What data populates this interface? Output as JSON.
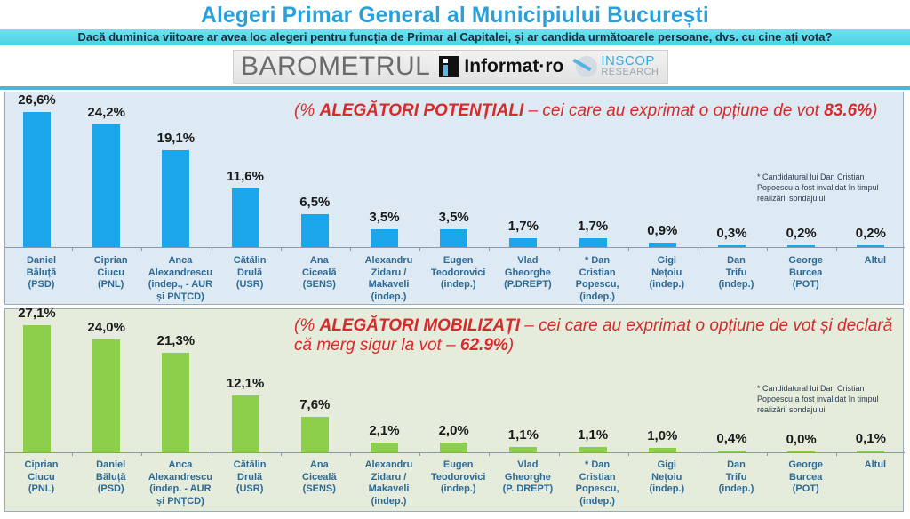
{
  "header": {
    "title": "Alegeri Primar General al Municipiului București",
    "question": "Dacă duminica viitoare ar avea loc alegeri pentru funcția de Primar al Capitalei, și ar candida următoarele persoane, dvs. cu cine ați vota?",
    "logos": {
      "barometrul": "BAROMETRUL",
      "informat": "Informat",
      "informat_suffix": "·ro",
      "inscop_1": "INSCOP",
      "inscop_2": "RESEARCH"
    }
  },
  "colors": {
    "title": "#2a9fd8",
    "potential_bar": "#1aa6e8",
    "mobilized_bar": "#8ccf4b",
    "heading_red": "#d62b2b",
    "label_blue": "#2e6a96"
  },
  "panels": {
    "potential": {
      "heading_open": "(% ",
      "heading_bold": "ALEGĂTORI POTENȚIALI",
      "heading_rest": " – cei care au exprimat o opțiune de vot ",
      "heading_value": "83.6%",
      "heading_close": ")",
      "footnote": "* Candidatural lui Dan Cristian Popoescu a fost invalidat în timpul realizării sondajului"
    },
    "mobilized": {
      "heading_open": "(% ",
      "heading_bold": "ALEGĂTORI MOBILIZAȚI",
      "heading_rest": " – cei care au exprimat o opțiune de vot și declară că merg sigur la vot – ",
      "heading_value": "62.9%",
      "heading_close": ")",
      "footnote": "* Candidatural lui Dan Cristian Popoescu a fost invalidat în timpul realizării sondajului"
    }
  },
  "chart_data": [
    {
      "type": "bar",
      "title": "% ALEGĂTORI POTENȚIALI – cei care au exprimat o opțiune de vot 83.6%",
      "categories": [
        "Daniel Băluță (PSD)",
        "Ciprian Ciucu (PNL)",
        "Anca Alexandrescu (indep., - AUR și PNȚCD)",
        "Cătălin Drulă (USR)",
        "Ana Ciceală (SENS)",
        "Alexandru Zidaru / Makaveli (indep.)",
        "Eugen Teodorovici (indep.)",
        "Vlad Gheorghe (P.DREPT)",
        "* Dan Cristian Popescu, (indep.)",
        "Gigi Nețoiu (indep.)",
        "Dan Trifu (indep.)",
        "George Burcea (POT)",
        "Altul"
      ],
      "label_lines": [
        [
          "Daniel",
          "Băluță",
          "(PSD)"
        ],
        [
          "Ciprian",
          "Ciucu",
          "(PNL)"
        ],
        [
          "Anca",
          "Alexandrescu",
          "(indep., - AUR",
          "și PNȚCD)"
        ],
        [
          "Cătălin",
          "Drulă",
          "(USR)"
        ],
        [
          "Ana",
          "Ciceală",
          "(SENS)"
        ],
        [
          "Alexandru",
          "Zidaru /",
          "Makaveli",
          "(indep.)"
        ],
        [
          "Eugen",
          "Teodorovici",
          "(indep.)"
        ],
        [
          "Vlad",
          "Gheorghe",
          "(P.DREPT)"
        ],
        [
          "* Dan",
          "Cristian",
          "Popescu,",
          "(indep.)"
        ],
        [
          "Gigi",
          "Nețoiu",
          "(indep.)"
        ],
        [
          "Dan",
          "Trifu",
          "(indep.)"
        ],
        [
          "George",
          "Burcea",
          "(POT)"
        ],
        [
          "Altul"
        ]
      ],
      "values": [
        26.6,
        24.2,
        19.1,
        11.6,
        6.5,
        3.5,
        3.5,
        1.7,
        1.7,
        0.9,
        0.3,
        0.2,
        0.2
      ],
      "value_labels": [
        "26,6%",
        "24,2%",
        "19,1%",
        "11,6%",
        "6,5%",
        "3,5%",
        "3,5%",
        "1,7%",
        "1,7%",
        "0,9%",
        "0,3%",
        "0,2%",
        "0,2%"
      ],
      "xlabel": "",
      "ylabel": "",
      "ylim": [
        0,
        30
      ],
      "grid": false,
      "legend": "none"
    },
    {
      "type": "bar",
      "title": "% ALEGĂTORI MOBILIZAȚI – cei care au exprimat o opțiune de vot și declară că merg sigur la vot – 62.9%",
      "categories": [
        "Ciprian Ciucu (PNL)",
        "Daniel Băluță (PSD)",
        "Anca Alexandrescu (indep. - AUR și PNȚCD)",
        "Cătălin Drulă (USR)",
        "Ana Ciceală (SENS)",
        "Alexandru Zidaru / Makaveli (indep.)",
        "Eugen Teodorovici (indep.)",
        "Vlad Gheorghe (P. DREPT)",
        "* Dan Cristian Popescu, (indep.)",
        "Gigi Nețoiu (indep.)",
        "Dan Trifu (indep.)",
        "George Burcea (POT)",
        "Altul"
      ],
      "label_lines": [
        [
          "Ciprian",
          "Ciucu",
          "(PNL)"
        ],
        [
          "Daniel",
          "Băluță",
          "(PSD)"
        ],
        [
          "Anca",
          "Alexandrescu",
          "(indep. - AUR",
          "și PNȚCD)"
        ],
        [
          "Cătălin",
          "Drulă",
          "(USR)"
        ],
        [
          "Ana",
          "Ciceală",
          "(SENS)"
        ],
        [
          "Alexandru",
          "Zidaru /",
          "Makaveli",
          "(indep.)"
        ],
        [
          "Eugen",
          "Teodorovici",
          "(indep.)"
        ],
        [
          "Vlad",
          "Gheorghe",
          "(P. DREPT)"
        ],
        [
          "* Dan",
          "Cristian",
          "Popescu,",
          "(indep.)"
        ],
        [
          "Gigi",
          "Nețoiu",
          "(indep.)"
        ],
        [
          "Dan",
          "Trifu",
          "(indep.)"
        ],
        [
          "George",
          "Burcea",
          "(POT)"
        ],
        [
          "Altul"
        ]
      ],
      "values": [
        27.1,
        24.0,
        21.3,
        12.1,
        7.6,
        2.1,
        2.0,
        1.1,
        1.1,
        1.0,
        0.4,
        0.0,
        0.1
      ],
      "value_labels": [
        "27,1%",
        "24,0%",
        "21,3%",
        "12,1%",
        "7,6%",
        "2,1%",
        "2,0%",
        "1,1%",
        "1,1%",
        "1,0%",
        "0,4%",
        "0,0%",
        "0,1%"
      ],
      "xlabel": "",
      "ylabel": "",
      "ylim": [
        0,
        30
      ],
      "grid": false,
      "legend": "none"
    }
  ]
}
